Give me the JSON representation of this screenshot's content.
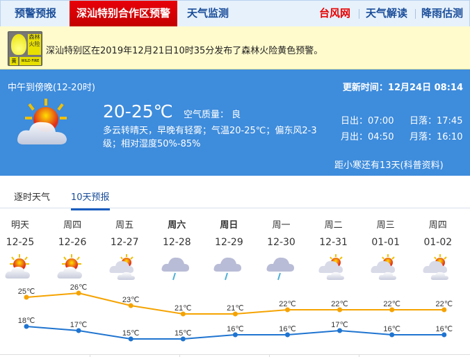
{
  "nav": {
    "items": [
      "预警预报",
      "深汕特别合作区预警",
      "天气监测"
    ],
    "right": [
      "台风网",
      "天气解读",
      "降雨估测"
    ]
  },
  "alert": {
    "badge": {
      "name": "森林火险",
      "level": "黄",
      "en": "WILD FIRE"
    },
    "text": "深汕特别区在2019年12月21日10时35分发布了森林火险黄色预警。",
    "level_color": "#e8e000"
  },
  "current": {
    "period": "中午到傍晚(12-20时)",
    "update": "更新时间：12月24日 08:14",
    "temp": "20-25℃",
    "aqi": "空气质量：  良",
    "desc1": "多云转晴天，早晚有轻雾；气温20-25℃；偏东风2-3",
    "desc2": "级；相对湿度50%-85%",
    "sunrise": "日出：07:00",
    "sunset": "日落：17:45",
    "moonrise": "月出：04:50",
    "moonset": "月落：16:10",
    "solar_term": "距小寒还有13天(科普资料)",
    "icon": "partly-cloudy-sunny-icon"
  },
  "tabs": [
    "逐时天气",
    "10天预报"
  ],
  "forecast": {
    "days": [
      {
        "day": "明天",
        "date": "12-25",
        "icon": "sun-cloud",
        "bold": false
      },
      {
        "day": "周四",
        "date": "12-26",
        "icon": "sun-cloud",
        "bold": false
      },
      {
        "day": "周五",
        "date": "12-27",
        "icon": "cloudy",
        "bold": false
      },
      {
        "day": "周六",
        "date": "12-28",
        "icon": "rain",
        "bold": true
      },
      {
        "day": "周日",
        "date": "12-29",
        "icon": "rain",
        "bold": true
      },
      {
        "day": "周一",
        "date": "12-30",
        "icon": "rain",
        "bold": false
      },
      {
        "day": "周二",
        "date": "12-31",
        "icon": "cloudy",
        "bold": false
      },
      {
        "day": "周三",
        "date": "01-01",
        "icon": "cloudy",
        "bold": false
      },
      {
        "day": "周四",
        "date": "01-02",
        "icon": "cloudy",
        "bold": false
      }
    ],
    "high": [
      25,
      26,
      23,
      21,
      21,
      22,
      22,
      22,
      22
    ],
    "low": [
      18,
      17,
      15,
      15,
      16,
      16,
      17,
      16,
      16
    ],
    "unit": "℃",
    "high_color": "#f5a300",
    "low_color": "#1f74d0"
  }
}
